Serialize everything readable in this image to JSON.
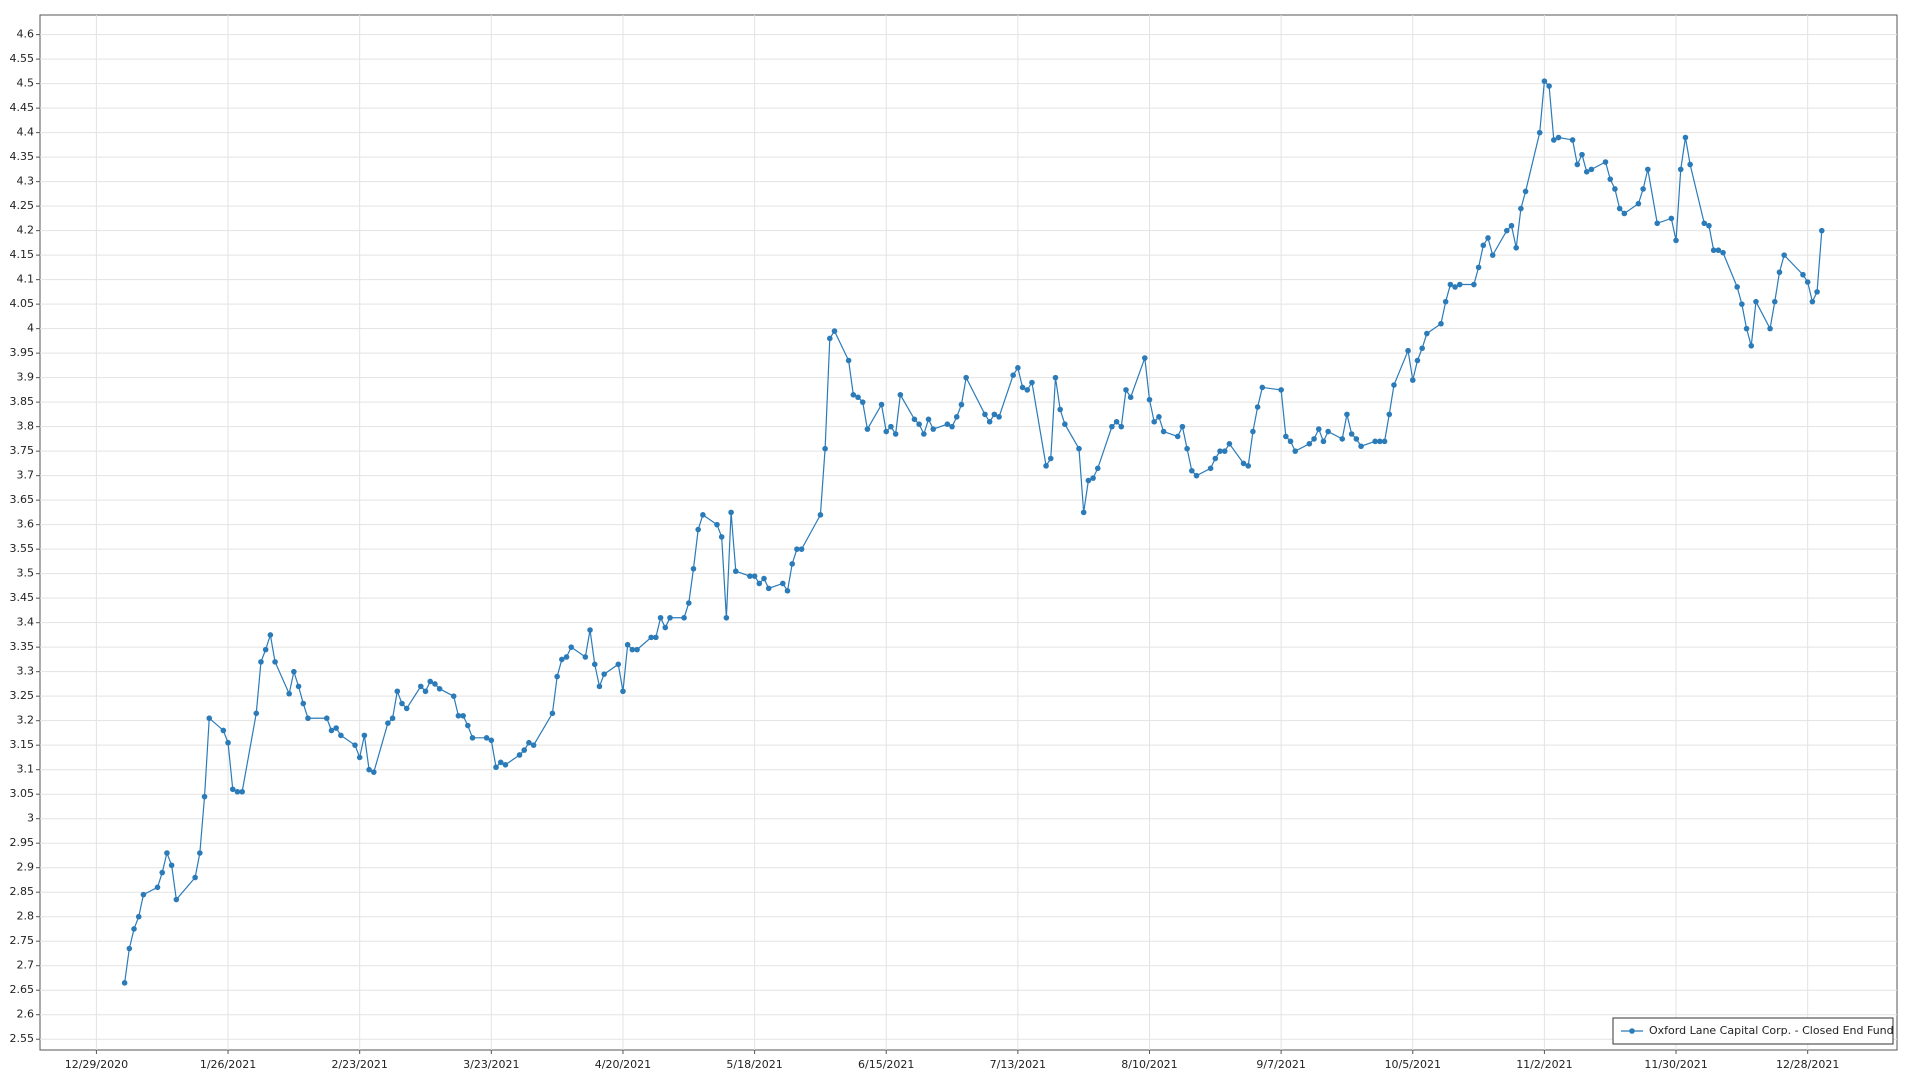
{
  "chart_data": {
    "type": "line",
    "xlim": [
      "12/17/2020",
      "1/16/2022"
    ],
    "xticks": [
      "12/29/2020",
      "1/26/2021",
      "2/23/2021",
      "3/23/2021",
      "4/20/2021",
      "5/18/2021",
      "6/15/2021",
      "7/13/2021",
      "8/10/2021",
      "9/7/2021",
      "10/5/2021",
      "11/2/2021",
      "11/30/2021",
      "12/28/2021"
    ],
    "ylim": [
      2.528,
      4.64
    ],
    "yticks": [
      2.55,
      2.6,
      2.65,
      2.7,
      2.75,
      2.8,
      2.85,
      2.9,
      2.95,
      3,
      3.05,
      3.1,
      3.15,
      3.2,
      3.25,
      3.3,
      3.35,
      3.4,
      3.45,
      3.5,
      3.55,
      3.6,
      3.65,
      3.7,
      3.75,
      3.8,
      3.85,
      3.9,
      3.95,
      4,
      4.05,
      4.1,
      4.15,
      4.2,
      4.25,
      4.3,
      4.35,
      4.4,
      4.45,
      4.5,
      4.55,
      4.6
    ],
    "grid": true,
    "legend": "bottom-right",
    "x": [
      "1/4/2021",
      "1/5/2021",
      "1/6/2021",
      "1/7/2021",
      "1/8/2021",
      "1/11/2021",
      "1/12/2021",
      "1/13/2021",
      "1/14/2021",
      "1/15/2021",
      "1/19/2021",
      "1/20/2021",
      "1/21/2021",
      "1/22/2021",
      "1/25/2021",
      "1/26/2021",
      "1/27/2021",
      "1/28/2021",
      "1/29/2021",
      "2/1/2021",
      "2/2/2021",
      "2/3/2021",
      "2/4/2021",
      "2/5/2021",
      "2/8/2021",
      "2/9/2021",
      "2/10/2021",
      "2/11/2021",
      "2/12/2021",
      "2/16/2021",
      "2/17/2021",
      "2/18/2021",
      "2/19/2021",
      "2/22/2021",
      "2/23/2021",
      "2/24/2021",
      "2/25/2021",
      "2/26/2021",
      "3/1/2021",
      "3/2/2021",
      "3/3/2021",
      "3/4/2021",
      "3/5/2021",
      "3/8/2021",
      "3/9/2021",
      "3/10/2021",
      "3/11/2021",
      "3/12/2021",
      "3/15/2021",
      "3/16/2021",
      "3/17/2021",
      "3/18/2021",
      "3/19/2021",
      "3/22/2021",
      "3/23/2021",
      "3/24/2021",
      "3/25/2021",
      "3/26/2021",
      "3/29/2021",
      "3/30/2021",
      "3/31/2021",
      "4/1/2021",
      "4/5/2021",
      "4/6/2021",
      "4/7/2021",
      "4/8/2021",
      "4/9/2021",
      "4/12/2021",
      "4/13/2021",
      "4/14/2021",
      "4/15/2021",
      "4/16/2021",
      "4/19/2021",
      "4/20/2021",
      "4/21/2021",
      "4/22/2021",
      "4/23/2021",
      "4/26/2021",
      "4/27/2021",
      "4/28/2021",
      "4/29/2021",
      "4/30/2021",
      "5/3/2021",
      "5/4/2021",
      "5/5/2021",
      "5/6/2021",
      "5/7/2021",
      "5/10/2021",
      "5/11/2021",
      "5/12/2021",
      "5/13/2021",
      "5/14/2021",
      "5/17/2021",
      "5/18/2021",
      "5/19/2021",
      "5/20/2021",
      "5/21/2021",
      "5/24/2021",
      "5/25/2021",
      "5/26/2021",
      "5/27/2021",
      "5/28/2021",
      "6/1/2021",
      "6/2/2021",
      "6/3/2021",
      "6/4/2021",
      "6/7/2021",
      "6/8/2021",
      "6/9/2021",
      "6/10/2021",
      "6/11/2021",
      "6/14/2021",
      "6/15/2021",
      "6/16/2021",
      "6/17/2021",
      "6/18/2021",
      "6/21/2021",
      "6/22/2021",
      "6/23/2021",
      "6/24/2021",
      "6/25/2021",
      "6/28/2021",
      "6/29/2021",
      "6/30/2021",
      "7/1/2021",
      "7/2/2021",
      "7/6/2021",
      "7/7/2021",
      "7/8/2021",
      "7/9/2021",
      "7/12/2021",
      "7/13/2021",
      "7/14/2021",
      "7/15/2021",
      "7/16/2021",
      "7/19/2021",
      "7/20/2021",
      "7/21/2021",
      "7/22/2021",
      "7/23/2021",
      "7/26/2021",
      "7/27/2021",
      "7/28/2021",
      "7/29/2021",
      "7/30/2021",
      "8/2/2021",
      "8/3/2021",
      "8/4/2021",
      "8/5/2021",
      "8/6/2021",
      "8/9/2021",
      "8/10/2021",
      "8/11/2021",
      "8/12/2021",
      "8/13/2021",
      "8/16/2021",
      "8/17/2021",
      "8/18/2021",
      "8/19/2021",
      "8/20/2021",
      "8/23/2021",
      "8/24/2021",
      "8/25/2021",
      "8/26/2021",
      "8/27/2021",
      "8/30/2021",
      "8/31/2021",
      "9/1/2021",
      "9/2/2021",
      "9/3/2021",
      "9/7/2021",
      "9/8/2021",
      "9/9/2021",
      "9/10/2021",
      "9/13/2021",
      "9/14/2021",
      "9/15/2021",
      "9/16/2021",
      "9/17/2021",
      "9/20/2021",
      "9/21/2021",
      "9/22/2021",
      "9/23/2021",
      "9/24/2021",
      "9/27/2021",
      "9/28/2021",
      "9/29/2021",
      "9/30/2021",
      "10/1/2021",
      "10/4/2021",
      "10/5/2021",
      "10/6/2021",
      "10/7/2021",
      "10/8/2021",
      "10/11/2021",
      "10/12/2021",
      "10/13/2021",
      "10/14/2021",
      "10/15/2021",
      "10/18/2021",
      "10/19/2021",
      "10/20/2021",
      "10/21/2021",
      "10/22/2021",
      "10/25/2021",
      "10/26/2021",
      "10/27/2021",
      "10/28/2021",
      "10/29/2021",
      "11/1/2021",
      "11/2/2021",
      "11/3/2021",
      "11/4/2021",
      "11/5/2021",
      "11/8/2021",
      "11/9/2021",
      "11/10/2021",
      "11/11/2021",
      "11/12/2021",
      "11/15/2021",
      "11/16/2021",
      "11/17/2021",
      "11/18/2021",
      "11/19/2021",
      "11/22/2021",
      "11/23/2021",
      "11/24/2021",
      "11/26/2021",
      "11/29/2021",
      "11/30/2021",
      "12/1/2021",
      "12/2/2021",
      "12/3/2021",
      "12/6/2021",
      "12/7/2021",
      "12/8/2021",
      "12/9/2021",
      "12/10/2021",
      "12/13/2021",
      "12/14/2021",
      "12/15/2021",
      "12/16/2021",
      "12/17/2021",
      "12/20/2021",
      "12/21/2021",
      "12/22/2021",
      "12/23/2021",
      "12/27/2021",
      "12/28/2021",
      "12/29/2021",
      "12/30/2021",
      "12/31/2021"
    ],
    "series": [
      {
        "name": "Oxford Lane Capital Corp. - Closed End Fund",
        "color": "#2b7bb9",
        "values": [
          2.665,
          2.735,
          2.775,
          2.8,
          2.845,
          2.86,
          2.89,
          2.93,
          2.905,
          2.835,
          2.88,
          2.93,
          3.045,
          3.205,
          3.18,
          3.155,
          3.06,
          3.055,
          3.055,
          3.215,
          3.32,
          3.345,
          3.375,
          3.32,
          3.255,
          3.3,
          3.27,
          3.235,
          3.205,
          3.205,
          3.18,
          3.185,
          3.17,
          3.15,
          3.125,
          3.17,
          3.1,
          3.095,
          3.195,
          3.205,
          3.26,
          3.235,
          3.225,
          3.27,
          3.26,
          3.28,
          3.275,
          3.265,
          3.25,
          3.21,
          3.21,
          3.19,
          3.165,
          3.165,
          3.16,
          3.105,
          3.115,
          3.11,
          3.13,
          3.14,
          3.155,
          3.15,
          3.215,
          3.29,
          3.325,
          3.33,
          3.35,
          3.33,
          3.385,
          3.315,
          3.27,
          3.295,
          3.315,
          3.26,
          3.355,
          3.345,
          3.345,
          3.37,
          3.37,
          3.41,
          3.39,
          3.41,
          3.41,
          3.44,
          3.51,
          3.59,
          3.62,
          3.6,
          3.575,
          3.41,
          3.625,
          3.505,
          3.495,
          3.495,
          3.48,
          3.49,
          3.47,
          3.48,
          3.465,
          3.52,
          3.55,
          3.55,
          3.62,
          3.755,
          3.98,
          3.995,
          3.935,
          3.865,
          3.86,
          3.85,
          3.795,
          3.845,
          3.79,
          3.8,
          3.785,
          3.865,
          3.815,
          3.805,
          3.785,
          3.815,
          3.795,
          3.805,
          3.8,
          3.82,
          3.845,
          3.9,
          3.825,
          3.81,
          3.825,
          3.82,
          3.905,
          3.92,
          3.88,
          3.875,
          3.89,
          3.72,
          3.735,
          3.9,
          3.835,
          3.805,
          3.755,
          3.625,
          3.69,
          3.695,
          3.715,
          3.8,
          3.81,
          3.8,
          3.875,
          3.86,
          3.94,
          3.855,
          3.81,
          3.82,
          3.79,
          3.78,
          3.8,
          3.755,
          3.71,
          3.7,
          3.715,
          3.735,
          3.75,
          3.75,
          3.765,
          3.725,
          3.72,
          3.79,
          3.84,
          3.88,
          3.875,
          3.78,
          3.77,
          3.75,
          3.765,
          3.775,
          3.795,
          3.77,
          3.79,
          3.775,
          3.825,
          3.785,
          3.775,
          3.76,
          3.77,
          3.77,
          3.77,
          3.825,
          3.885,
          3.955,
          3.895,
          3.935,
          3.96,
          3.99,
          4.01,
          4.055,
          4.09,
          4.085,
          4.09,
          4.09,
          4.125,
          4.17,
          4.185,
          4.15,
          4.2,
          4.21,
          4.165,
          4.245,
          4.28,
          4.4,
          4.505,
          4.495,
          4.385,
          4.39,
          4.385,
          4.335,
          4.355,
          4.32,
          4.325,
          4.34,
          4.305,
          4.285,
          4.245,
          4.235,
          4.255,
          4.285,
          4.325,
          4.215,
          4.225,
          4.18,
          4.325,
          4.39,
          4.335,
          4.215,
          4.21,
          4.16,
          4.16,
          4.155,
          4.085,
          4.05,
          4,
          3.965,
          4.055,
          4,
          4.055,
          4.115,
          4.15,
          4.11,
          4.095,
          4.055,
          4.075,
          4.2
        ]
      }
    ]
  }
}
